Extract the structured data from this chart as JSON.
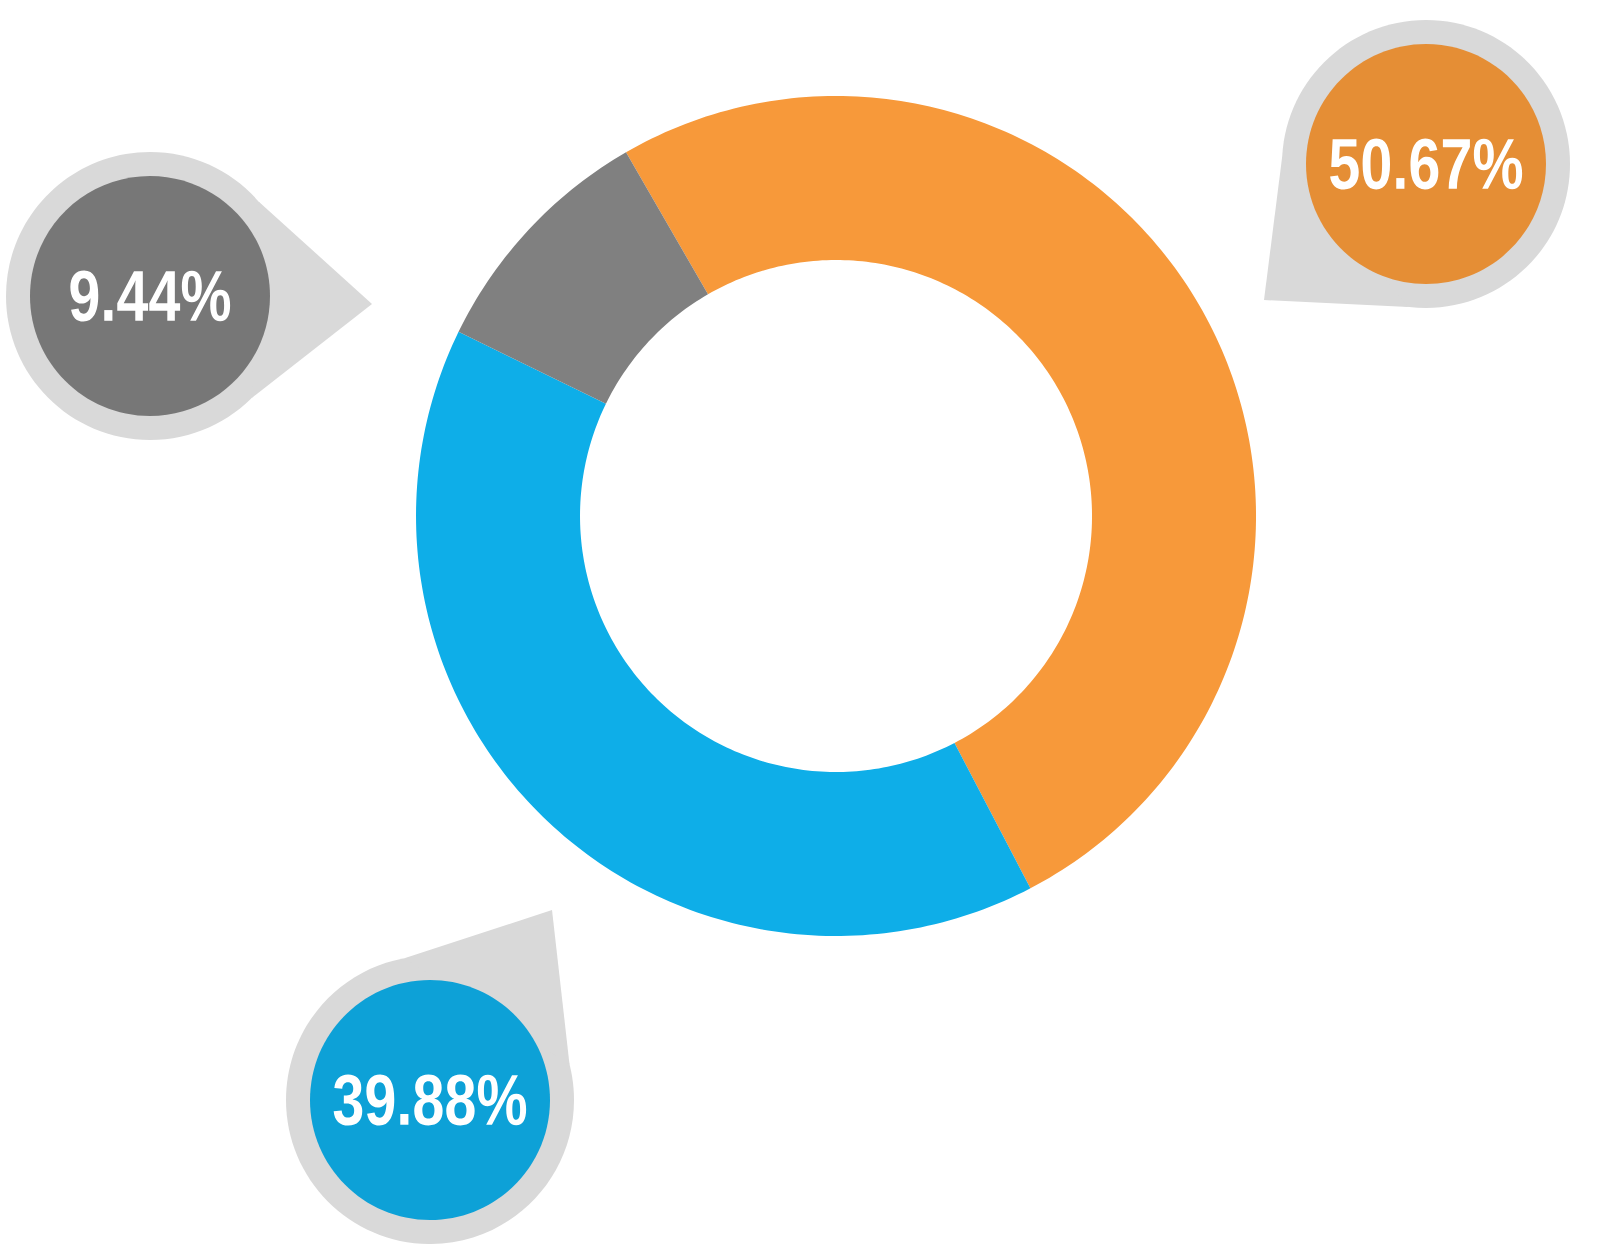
{
  "chart_data": {
    "type": "donut",
    "categories": [
      null,
      null,
      null
    ],
    "values": [
      50.67,
      39.88,
      9.44
    ],
    "colors": [
      "#f7993a",
      "#0eaee8",
      "#808080"
    ],
    "value_labels": [
      "50.67%",
      "39.88%",
      "9.44%"
    ]
  }
}
